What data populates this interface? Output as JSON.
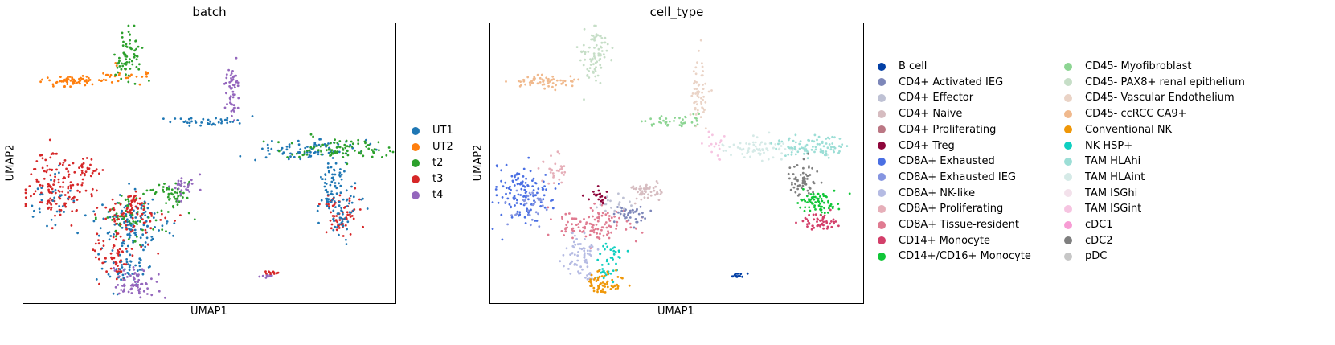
{
  "chart_data": [
    {
      "type": "scatter",
      "title": "batch",
      "xlabel": "UMAP1",
      "ylabel": "UMAP2",
      "grid": false,
      "ticks": false,
      "legend_position": "right",
      "legend": [
        {
          "label": "UT1",
          "color": "#1f77b4"
        },
        {
          "label": "UT2",
          "color": "#ff7f0e"
        },
        {
          "label": "t2",
          "color": "#2ca02c"
        },
        {
          "label": "t3",
          "color": "#d62728"
        },
        {
          "label": "t4",
          "color": "#9467bd"
        }
      ],
      "clusters": [
        {
          "group": "UT2",
          "cx": 0.13,
          "cy": 0.79,
          "sx": 0.04,
          "sy": 0.01,
          "n": 60
        },
        {
          "group": "UT2",
          "cx": 0.25,
          "cy": 0.81,
          "sx": 0.04,
          "sy": 0.02,
          "n": 30
        },
        {
          "group": "t2",
          "cx": 0.28,
          "cy": 0.89,
          "sx": 0.02,
          "sy": 0.05,
          "n": 70
        },
        {
          "group": "t3",
          "cx": 0.08,
          "cy": 0.42,
          "sx": 0.04,
          "sy": 0.06,
          "n": 130
        },
        {
          "group": "UT1",
          "cx": 0.07,
          "cy": 0.37,
          "sx": 0.03,
          "sy": 0.04,
          "n": 30
        },
        {
          "group": "t3",
          "cx": 0.17,
          "cy": 0.47,
          "sx": 0.02,
          "sy": 0.03,
          "n": 30
        },
        {
          "group": "UT1",
          "cx": 0.29,
          "cy": 0.28,
          "sx": 0.05,
          "sy": 0.05,
          "n": 120
        },
        {
          "group": "t2",
          "cx": 0.3,
          "cy": 0.3,
          "sx": 0.05,
          "sy": 0.05,
          "n": 60
        },
        {
          "group": "t3",
          "cx": 0.28,
          "cy": 0.3,
          "sx": 0.05,
          "sy": 0.05,
          "n": 60
        },
        {
          "group": "t3",
          "cx": 0.24,
          "cy": 0.16,
          "sx": 0.03,
          "sy": 0.04,
          "n": 60
        },
        {
          "group": "UT1",
          "cx": 0.27,
          "cy": 0.12,
          "sx": 0.03,
          "sy": 0.04,
          "n": 50
        },
        {
          "group": "t4",
          "cx": 0.31,
          "cy": 0.07,
          "sx": 0.03,
          "sy": 0.03,
          "n": 70
        },
        {
          "group": "t2",
          "cx": 0.4,
          "cy": 0.39,
          "sx": 0.03,
          "sy": 0.03,
          "n": 50
        },
        {
          "group": "t4",
          "cx": 0.43,
          "cy": 0.42,
          "sx": 0.02,
          "sy": 0.02,
          "n": 30
        },
        {
          "group": "t3",
          "cx": 0.3,
          "cy": 0.36,
          "sx": 0.02,
          "sy": 0.02,
          "n": 30
        },
        {
          "group": "UT1",
          "cx": 0.48,
          "cy": 0.65,
          "sx": 0.05,
          "sy": 0.01,
          "n": 40
        },
        {
          "group": "t4",
          "cx": 0.56,
          "cy": 0.76,
          "sx": 0.01,
          "sy": 0.06,
          "n": 55
        },
        {
          "group": "UT1",
          "cx": 0.75,
          "cy": 0.55,
          "sx": 0.08,
          "sy": 0.02,
          "n": 80
        },
        {
          "group": "t2",
          "cx": 0.85,
          "cy": 0.55,
          "sx": 0.07,
          "sy": 0.02,
          "n": 90
        },
        {
          "group": "UT1",
          "cx": 0.83,
          "cy": 0.44,
          "sx": 0.02,
          "sy": 0.04,
          "n": 50
        },
        {
          "group": "t3",
          "cx": 0.86,
          "cy": 0.32,
          "sx": 0.03,
          "sy": 0.04,
          "n": 60
        },
        {
          "group": "UT1",
          "cx": 0.85,
          "cy": 0.34,
          "sx": 0.03,
          "sy": 0.04,
          "n": 60
        },
        {
          "group": "t3",
          "cx": 0.67,
          "cy": 0.11,
          "sx": 0.01,
          "sy": 0.005,
          "n": 10
        },
        {
          "group": "t4",
          "cx": 0.655,
          "cy": 0.095,
          "sx": 0.008,
          "sy": 0.004,
          "n": 8
        }
      ]
    },
    {
      "type": "scatter",
      "title": "cell_type",
      "xlabel": "UMAP1",
      "ylabel": "UMAP2",
      "grid": false,
      "ticks": false,
      "legend_position": "right",
      "legend": [
        {
          "label": "B cell",
          "color": "#023fa5"
        },
        {
          "label": "CD4+ Activated IEG",
          "color": "#7d87b9"
        },
        {
          "label": "CD4+ Effector",
          "color": "#bec1d4"
        },
        {
          "label": "CD4+ Naive",
          "color": "#d6bcc0"
        },
        {
          "label": "CD4+ Proliferating",
          "color": "#bb7784"
        },
        {
          "label": "CD4+ Treg",
          "color": "#8e063b"
        },
        {
          "label": "CD8A+ Exhausted",
          "color": "#4a6fe3"
        },
        {
          "label": "CD8A+ Exhausted IEG",
          "color": "#8595e1"
        },
        {
          "label": "CD8A+ NK-like",
          "color": "#b5bbe3"
        },
        {
          "label": "CD8A+ Proliferating",
          "color": "#e6afb9"
        },
        {
          "label": "CD8A+ Tissue-resident",
          "color": "#e07b91"
        },
        {
          "label": "CD14+ Monocyte",
          "color": "#d33f6a"
        },
        {
          "label": "CD14+/CD16+ Monocyte",
          "color": "#11c638"
        },
        {
          "label": "CD45- Myofibroblast",
          "color": "#8dd593"
        },
        {
          "label": "CD45- PAX8+ renal epithelium",
          "color": "#c6dec7"
        },
        {
          "label": "CD45- Vascular Endothelium",
          "color": "#ead3c6"
        },
        {
          "label": "CD45- ccRCC CA9+",
          "color": "#f0b98d"
        },
        {
          "label": "Conventional NK",
          "color": "#ef9708"
        },
        {
          "label": "NK HSP+",
          "color": "#0fcfc0"
        },
        {
          "label": "TAM HLAhi",
          "color": "#9cded6"
        },
        {
          "label": "TAM HLAint",
          "color": "#d5eae7"
        },
        {
          "label": "TAM ISGhi",
          "color": "#f3e1eb"
        },
        {
          "label": "TAM ISGint",
          "color": "#f6c4e1"
        },
        {
          "label": "cDC1",
          "color": "#f79cd4"
        },
        {
          "label": "cDC2",
          "color": "#7f7f7f"
        },
        {
          "label": "pDC",
          "color": "#c7c7c7"
        }
      ],
      "clusters": [
        {
          "group": "CD45- ccRCC CA9+",
          "cx": 0.14,
          "cy": 0.79,
          "sx": 0.04,
          "sy": 0.01,
          "n": 60
        },
        {
          "group": "CD45- PAX8+ renal epithelium",
          "cx": 0.28,
          "cy": 0.89,
          "sx": 0.02,
          "sy": 0.05,
          "n": 80
        },
        {
          "group": "CD45- Vascular Endothelium",
          "cx": 0.56,
          "cy": 0.74,
          "sx": 0.012,
          "sy": 0.06,
          "n": 60
        },
        {
          "group": "CD45- Myofibroblast",
          "cx": 0.48,
          "cy": 0.65,
          "sx": 0.05,
          "sy": 0.01,
          "n": 40
        },
        {
          "group": "TAM ISGint",
          "cx": 0.6,
          "cy": 0.57,
          "sx": 0.02,
          "sy": 0.02,
          "n": 20
        },
        {
          "group": "TAM HLAint",
          "cx": 0.72,
          "cy": 0.55,
          "sx": 0.06,
          "sy": 0.02,
          "n": 70
        },
        {
          "group": "TAM HLAhi",
          "cx": 0.87,
          "cy": 0.56,
          "sx": 0.05,
          "sy": 0.02,
          "n": 90
        },
        {
          "group": "cDC2",
          "cx": 0.84,
          "cy": 0.45,
          "sx": 0.02,
          "sy": 0.03,
          "n": 60
        },
        {
          "group": "CD14+/CD16+ Monocyte",
          "cx": 0.88,
          "cy": 0.36,
          "sx": 0.025,
          "sy": 0.02,
          "n": 70
        },
        {
          "group": "CD14+ Monocyte",
          "cx": 0.88,
          "cy": 0.29,
          "sx": 0.025,
          "sy": 0.015,
          "n": 50
        },
        {
          "group": "CD8A+ Exhausted",
          "cx": 0.09,
          "cy": 0.4,
          "sx": 0.04,
          "sy": 0.05,
          "n": 130
        },
        {
          "group": "CD8A+ Exhausted IEG",
          "cx": 0.1,
          "cy": 0.35,
          "sx": 0.03,
          "sy": 0.03,
          "n": 30
        },
        {
          "group": "CD8A+ Proliferating",
          "cx": 0.17,
          "cy": 0.47,
          "sx": 0.02,
          "sy": 0.03,
          "n": 30
        },
        {
          "group": "CD8A+ Tissue-resident",
          "cx": 0.28,
          "cy": 0.28,
          "sx": 0.05,
          "sy": 0.03,
          "n": 110
        },
        {
          "group": "CD8A+ NK-like",
          "cx": 0.24,
          "cy": 0.16,
          "sx": 0.025,
          "sy": 0.04,
          "n": 70
        },
        {
          "group": "NK HSP+",
          "cx": 0.32,
          "cy": 0.15,
          "sx": 0.02,
          "sy": 0.04,
          "n": 40
        },
        {
          "group": "Conventional NK",
          "cx": 0.31,
          "cy": 0.07,
          "sx": 0.025,
          "sy": 0.025,
          "n": 60
        },
        {
          "group": "CD4+ Treg",
          "cx": 0.29,
          "cy": 0.38,
          "sx": 0.015,
          "sy": 0.015,
          "n": 20
        },
        {
          "group": "CD4+ Effector",
          "cx": 0.33,
          "cy": 0.35,
          "sx": 0.02,
          "sy": 0.02,
          "n": 20
        },
        {
          "group": "CD4+ Activated IEG",
          "cx": 0.38,
          "cy": 0.31,
          "sx": 0.02,
          "sy": 0.02,
          "n": 40
        },
        {
          "group": "CD4+ Naive",
          "cx": 0.42,
          "cy": 0.4,
          "sx": 0.02,
          "sy": 0.02,
          "n": 50
        },
        {
          "group": "B cell",
          "cx": 0.66,
          "cy": 0.1,
          "sx": 0.01,
          "sy": 0.005,
          "n": 15
        }
      ]
    }
  ]
}
